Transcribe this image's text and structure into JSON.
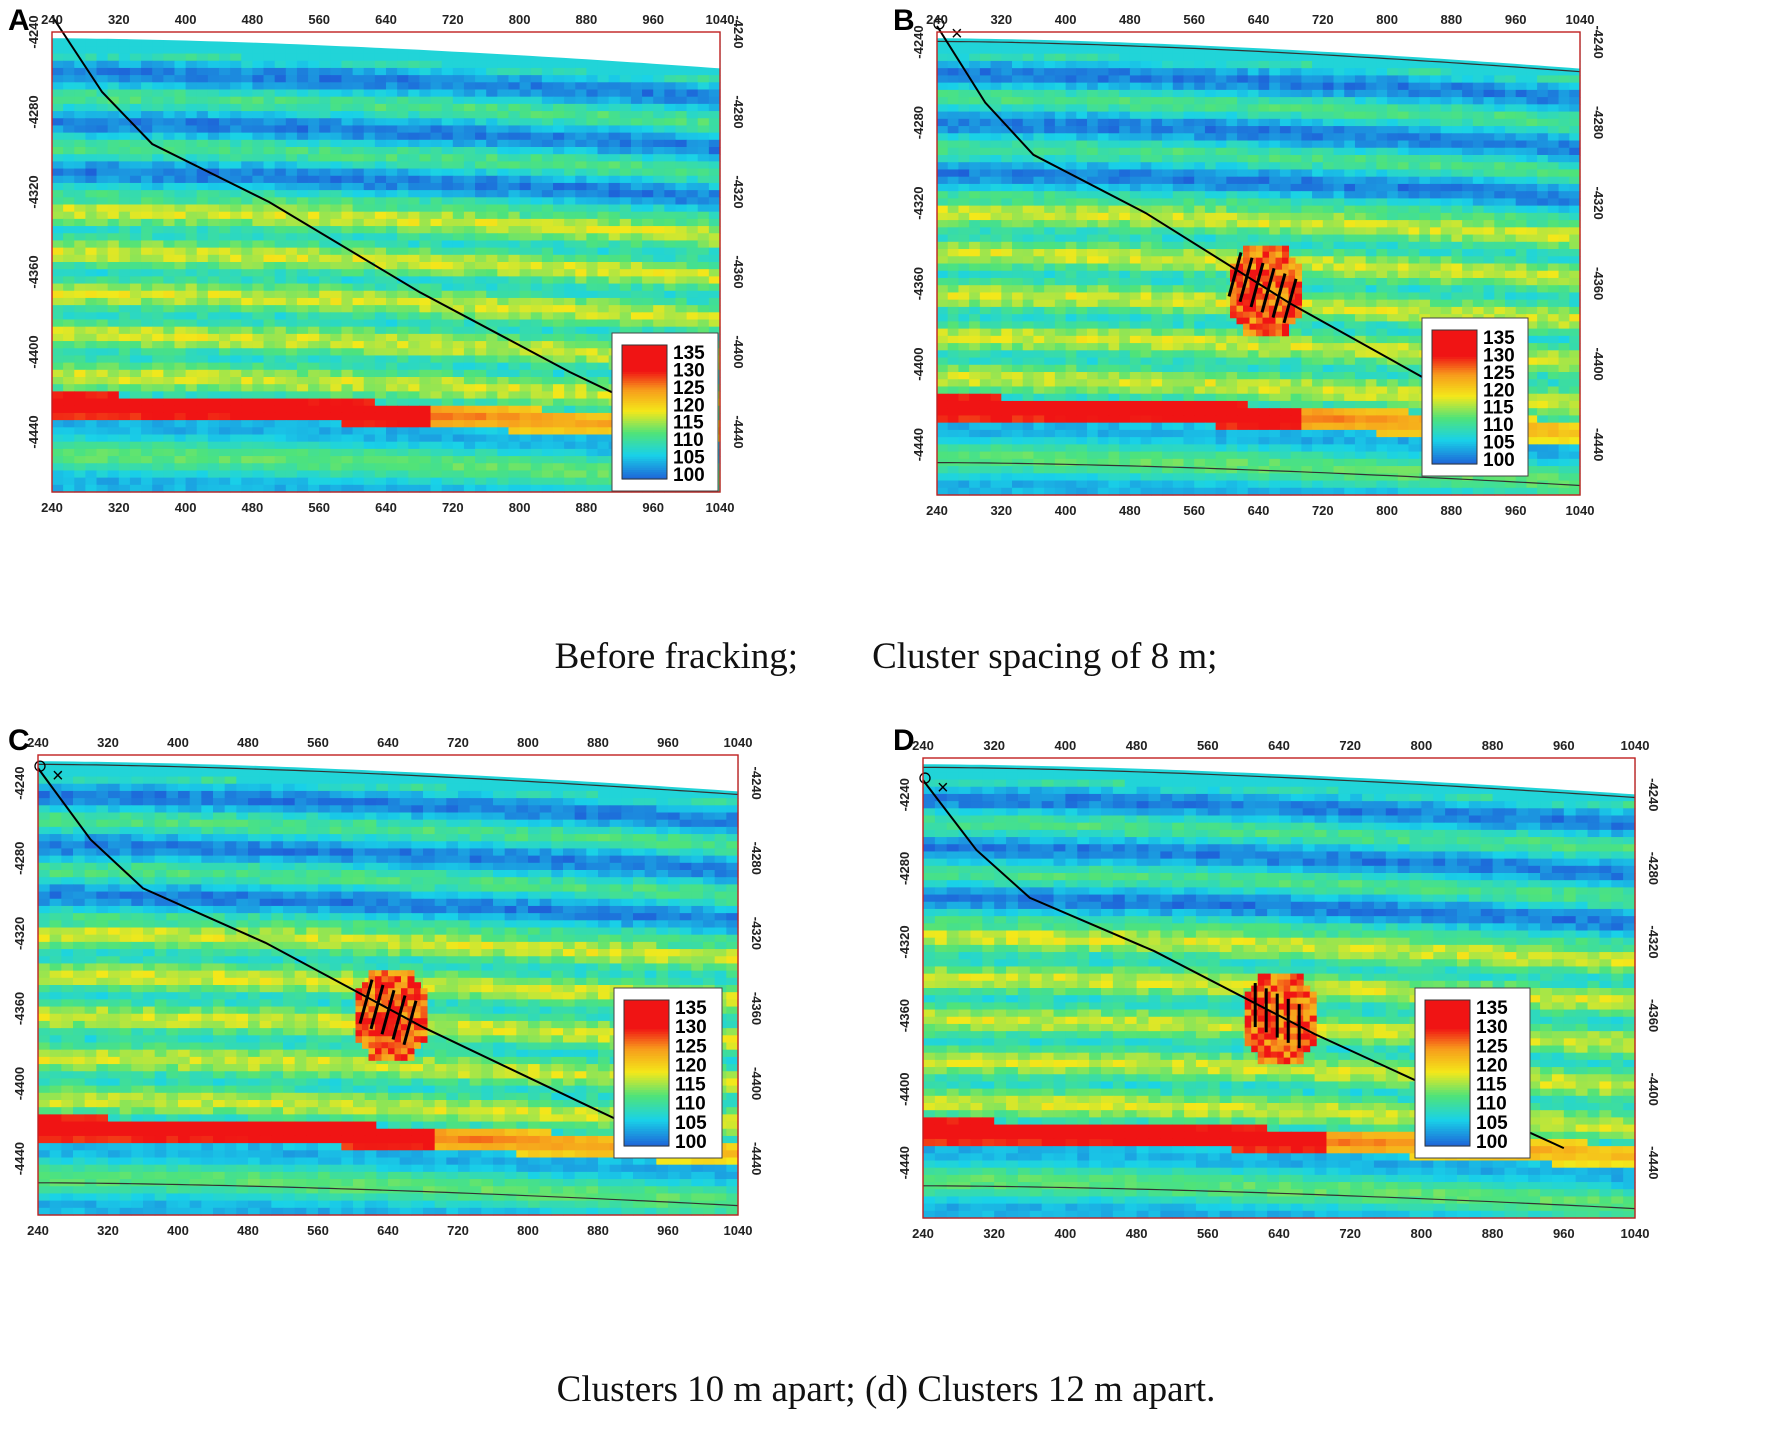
{
  "figure": {
    "captions": {
      "top": "Before fracking;        Cluster spacing of 8 m;",
      "bottom": "Clusters 10 m apart; (d) Clusters 12 m apart."
    },
    "colors": {
      "low": "#1e5fd8",
      "cyan": "#19d2e8",
      "mid_green": "#4fe37a",
      "yellow": "#f4e81a",
      "orange": "#f79a1c",
      "high": "#f01414",
      "well_line": "#000000",
      "axis_label": "#000000"
    }
  },
  "chart_data": [
    {
      "panel": "A",
      "type": "heatmap",
      "title": "",
      "xlabel": "",
      "ylabel": "",
      "xlim": [
        240,
        1040
      ],
      "ylim": [
        4240,
        4470
      ],
      "x_ticks": [
        "240",
        "320",
        "400",
        "480",
        "560",
        "640",
        "720",
        "800",
        "880",
        "960",
        "1040"
      ],
      "y_ticks": [
        "-4240",
        "-4280",
        "-4320",
        "-4360",
        "-4400",
        "-4440"
      ],
      "colorbar": {
        "min": 95,
        "max": 138,
        "ticks": [
          "135",
          "130",
          "125",
          "120",
          "115",
          "110",
          "105",
          "100"
        ]
      },
      "well_trajectory": [
        [
          240,
          4232
        ],
        [
          300,
          4270
        ],
        [
          360,
          4296
        ],
        [
          500,
          4325
        ],
        [
          680,
          4370
        ],
        [
          860,
          4410
        ],
        [
          960,
          4430
        ]
      ],
      "frac_zone": null,
      "cluster_spacing_m": null
    },
    {
      "panel": "B",
      "type": "heatmap",
      "title": "",
      "xlabel": "",
      "ylabel": "",
      "xlim": [
        240,
        1040
      ],
      "ylim": [
        4235,
        4465
      ],
      "x_ticks": [
        "240",
        "320",
        "400",
        "480",
        "560",
        "640",
        "720",
        "800",
        "880",
        "960",
        "1040"
      ],
      "y_ticks": [
        "-4240",
        "-4280",
        "-4320",
        "-4360",
        "-4400",
        "-4440"
      ],
      "colorbar": {
        "min": 95,
        "max": 138,
        "ticks": [
          "135",
          "130",
          "125",
          "120",
          "115",
          "110",
          "105",
          "100"
        ]
      },
      "well_trajectory": [
        [
          240,
          4232
        ],
        [
          300,
          4270
        ],
        [
          360,
          4296
        ],
        [
          500,
          4325
        ],
        [
          680,
          4370
        ],
        [
          860,
          4410
        ],
        [
          960,
          4432
        ]
      ],
      "frac_zone": {
        "x_center": 645,
        "y_center": 4362,
        "clusters": 6
      },
      "cluster_spacing_m": 8
    },
    {
      "panel": "C",
      "type": "heatmap",
      "title": "",
      "xlabel": "",
      "ylabel": "",
      "xlim": [
        240,
        1040
      ],
      "ylim": [
        4225,
        4470
      ],
      "x_ticks": [
        "240",
        "320",
        "400",
        "480",
        "560",
        "640",
        "720",
        "800",
        "880",
        "960",
        "1040"
      ],
      "y_ticks": [
        "-4240",
        "-4280",
        "-4320",
        "-4360",
        "-4400",
        "-4440"
      ],
      "colorbar": {
        "min": 95,
        "max": 138,
        "ticks": [
          "135",
          "130",
          "125",
          "120",
          "115",
          "110",
          "105",
          "100"
        ]
      },
      "well_trajectory": [
        [
          240,
          4232
        ],
        [
          300,
          4270
        ],
        [
          360,
          4296
        ],
        [
          500,
          4325
        ],
        [
          680,
          4370
        ],
        [
          860,
          4410
        ],
        [
          960,
          4432
        ]
      ],
      "frac_zone": {
        "x_center": 640,
        "y_center": 4362,
        "clusters": 5
      },
      "cluster_spacing_m": 10
    },
    {
      "panel": "D",
      "type": "heatmap",
      "title": "",
      "xlabel": "",
      "ylabel": "",
      "xlim": [
        240,
        1040
      ],
      "ylim": [
        4220,
        4470
      ],
      "x_ticks": [
        "240",
        "320",
        "400",
        "480",
        "560",
        "640",
        "720",
        "800",
        "880",
        "960",
        "1040"
      ],
      "y_ticks": [
        "-4240",
        "-4280",
        "-4320",
        "-4360",
        "-4400",
        "-4440"
      ],
      "colorbar": {
        "min": 95,
        "max": 138,
        "ticks": [
          "135",
          "130",
          "125",
          "120",
          "115",
          "110",
          "105",
          "100"
        ]
      },
      "well_trajectory": [
        [
          240,
          4232
        ],
        [
          300,
          4270
        ],
        [
          360,
          4296
        ],
        [
          500,
          4325
        ],
        [
          680,
          4370
        ],
        [
          860,
          4410
        ],
        [
          960,
          4432
        ]
      ],
      "frac_zone": {
        "x_center": 638,
        "y_center": 4360,
        "clusters": 5
      },
      "cluster_spacing_m": 12
    }
  ]
}
